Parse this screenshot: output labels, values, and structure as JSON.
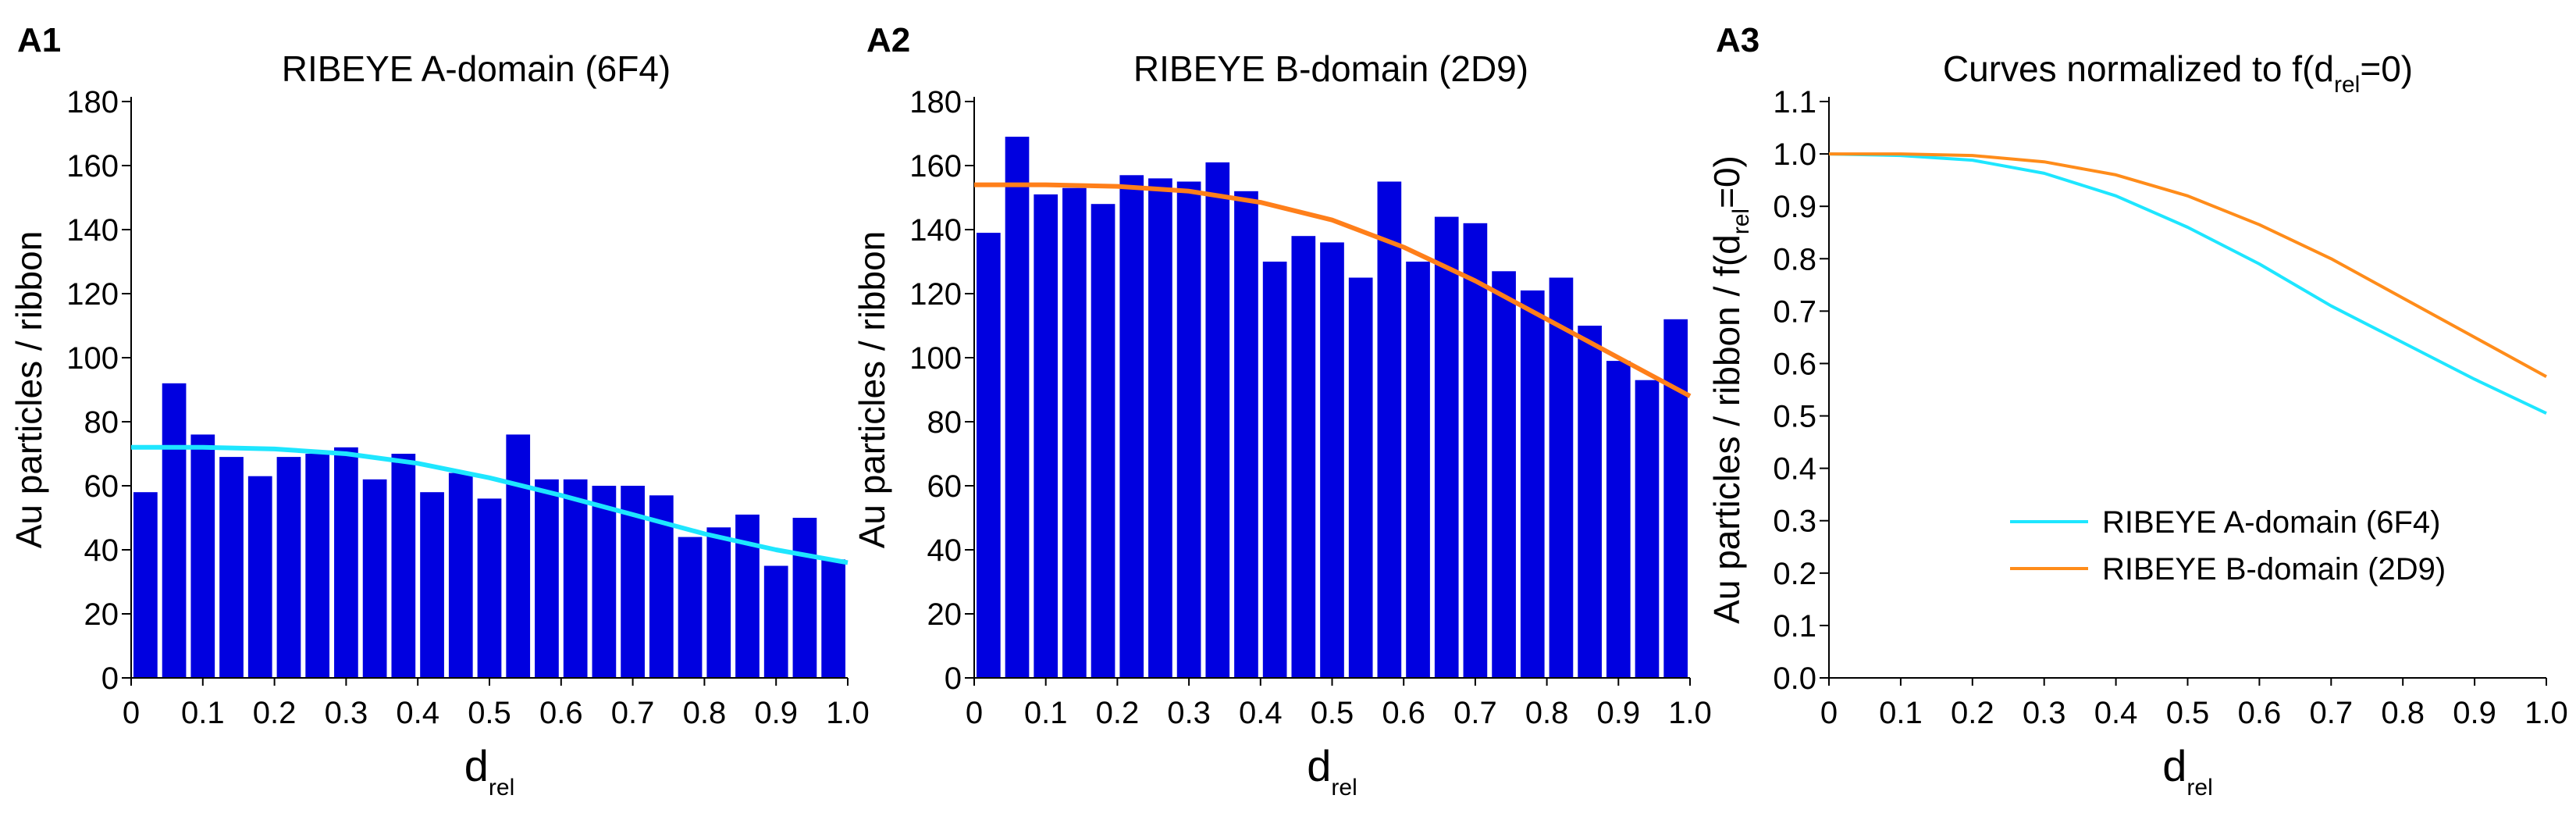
{
  "chart_data": [
    {
      "type": "bar",
      "panel_label": "A1",
      "title": "RIBEYE A-domain (6F4)",
      "xlabel_main": "d",
      "xlabel_sub": "rel",
      "ylabel": "Au particles / ribbon",
      "xlim": [
        0,
        1.0
      ],
      "ylim": [
        0,
        180
      ],
      "x_ticks": [
        "0",
        "0.1",
        "0.2",
        "0.3",
        "0.4",
        "0.5",
        "0.6",
        "0.7",
        "0.8",
        "0.9",
        "1.0"
      ],
      "y_ticks": [
        "0",
        "20",
        "40",
        "60",
        "80",
        "100",
        "120",
        "140",
        "160",
        "180"
      ],
      "bar_color": "#0000e0",
      "bin_width": 0.04,
      "bins": [
        0.0,
        0.04,
        0.08,
        0.12,
        0.16,
        0.2,
        0.24,
        0.28,
        0.32,
        0.36,
        0.4,
        0.44,
        0.48,
        0.52,
        0.56,
        0.6,
        0.64,
        0.68,
        0.72,
        0.76,
        0.8,
        0.84,
        0.88,
        0.92,
        0.96
      ],
      "values": [
        58,
        92,
        76,
        69,
        63,
        69,
        70,
        72,
        62,
        70,
        58,
        64,
        56,
        76,
        62,
        62,
        60,
        60,
        57,
        44,
        47,
        51,
        35,
        50,
        37
      ],
      "curve": {
        "color": "#1ee6ff",
        "x": [
          0,
          0.1,
          0.2,
          0.3,
          0.4,
          0.5,
          0.6,
          0.7,
          0.8,
          0.9,
          1.0
        ],
        "y": [
          72,
          72,
          71.5,
          70,
          67,
          62.5,
          57,
          51,
          45,
          40,
          36
        ]
      }
    },
    {
      "type": "bar",
      "panel_label": "A2",
      "title": "RIBEYE B-domain (2D9)",
      "xlabel_main": "d",
      "xlabel_sub": "rel",
      "ylabel": "Au particles / ribbon",
      "xlim": [
        0,
        1.0
      ],
      "ylim": [
        0,
        180
      ],
      "x_ticks": [
        "0",
        "0.1",
        "0.2",
        "0.3",
        "0.4",
        "0.5",
        "0.6",
        "0.7",
        "0.8",
        "0.9",
        "1.0"
      ],
      "y_ticks": [
        "0",
        "20",
        "40",
        "60",
        "80",
        "100",
        "120",
        "140",
        "160",
        "180"
      ],
      "bar_color": "#0000e0",
      "bin_width": 0.04,
      "bins": [
        0.0,
        0.04,
        0.08,
        0.12,
        0.16,
        0.2,
        0.24,
        0.28,
        0.32,
        0.36,
        0.4,
        0.44,
        0.48,
        0.52,
        0.56,
        0.6,
        0.64,
        0.68,
        0.72,
        0.76,
        0.8,
        0.84,
        0.88,
        0.92,
        0.96
      ],
      "values": [
        139,
        169,
        151,
        153,
        148,
        157,
        156,
        155,
        161,
        152,
        130,
        138,
        136,
        125,
        155,
        130,
        144,
        142,
        127,
        121,
        125,
        110,
        99,
        93,
        112
      ],
      "curve": {
        "color": "#ff7f1a",
        "x": [
          0,
          0.1,
          0.2,
          0.3,
          0.4,
          0.5,
          0.6,
          0.7,
          0.8,
          0.9,
          1.0
        ],
        "y": [
          154,
          154,
          153.5,
          152,
          148.5,
          143,
          134.5,
          124,
          112,
          100,
          88
        ]
      }
    },
    {
      "type": "line",
      "panel_label": "A3",
      "title_main": "Curves normalized to f(d",
      "title_sub": "rel",
      "title_tail": "=0)",
      "xlabel_main": "d",
      "xlabel_sub": "rel",
      "ylabel_main": "Au particles / ribbon / f(d",
      "ylabel_sub": "rel",
      "ylabel_tail": "=0)",
      "xlim": [
        0,
        1.0
      ],
      "ylim": [
        0,
        1.1
      ],
      "x_ticks": [
        "0",
        "0.1",
        "0.2",
        "0.3",
        "0.4",
        "0.5",
        "0.6",
        "0.7",
        "0.8",
        "0.9",
        "1.0"
      ],
      "y_ticks": [
        "0.0",
        "0.1",
        "0.2",
        "0.3",
        "0.4",
        "0.5",
        "0.6",
        "0.7",
        "0.8",
        "0.9",
        "1.0",
        "1.1"
      ],
      "legend_position": "bottom-right",
      "series": [
        {
          "name": "RIBEYE A-domain (6F4)",
          "color": "#1ee6ff",
          "x": [
            0,
            0.1,
            0.2,
            0.3,
            0.4,
            0.5,
            0.6,
            0.7,
            0.8,
            0.9,
            1.0
          ],
          "y": [
            1.0,
            0.997,
            0.988,
            0.963,
            0.92,
            0.86,
            0.79,
            0.71,
            0.64,
            0.57,
            0.505
          ]
        },
        {
          "name": "RIBEYE B-domain (2D9)",
          "color": "#ff8c1a",
          "x": [
            0,
            0.1,
            0.2,
            0.3,
            0.4,
            0.5,
            0.6,
            0.7,
            0.8,
            0.9,
            1.0
          ],
          "y": [
            1.0,
            1.0,
            0.997,
            0.985,
            0.96,
            0.92,
            0.865,
            0.8,
            0.725,
            0.65,
            0.575
          ]
        }
      ]
    }
  ]
}
